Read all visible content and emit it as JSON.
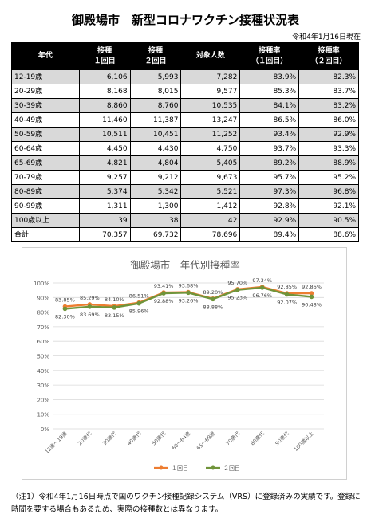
{
  "page": {
    "title": "御殿場市　新型コロナワクチン接種状況表",
    "date": "令和4年1月16日現在",
    "note": "（注1）令和4年1月16日時点で国のワクチン接種記録システム（VRS）に登録済みの実績です。登録に時間を要する場合もあるため、実際の接種数とは異なります。"
  },
  "table": {
    "headers": [
      [
        "年代",
        ""
      ],
      [
        "接種",
        "１回目"
      ],
      [
        "接種",
        "２回目"
      ],
      [
        "対象人数",
        ""
      ],
      [
        "接種率",
        "（１回目）"
      ],
      [
        "接種率",
        "（２回目）"
      ]
    ],
    "rows": [
      [
        "12-19歳",
        "6,106",
        "5,993",
        "7,282",
        "83.9%",
        "82.3%"
      ],
      [
        "20-29歳",
        "8,168",
        "8,015",
        "9,577",
        "85.3%",
        "83.7%"
      ],
      [
        "30-39歳",
        "8,860",
        "8,760",
        "10,535",
        "84.1%",
        "83.2%"
      ],
      [
        "40-49歳",
        "11,460",
        "11,387",
        "13,247",
        "86.5%",
        "86.0%"
      ],
      [
        "50-59歳",
        "10,511",
        "10,451",
        "11,252",
        "93.4%",
        "92.9%"
      ],
      [
        "60-64歳",
        "4,450",
        "4,430",
        "4,750",
        "93.7%",
        "93.3%"
      ],
      [
        "65-69歳",
        "4,821",
        "4,804",
        "5,405",
        "89.2%",
        "88.9%"
      ],
      [
        "70-79歳",
        "9,257",
        "9,212",
        "9,673",
        "95.7%",
        "95.2%"
      ],
      [
        "80-89歳",
        "5,374",
        "5,342",
        "5,521",
        "97.3%",
        "96.8%"
      ],
      [
        "90-99歳",
        "1,311",
        "1,300",
        "1,412",
        "92.8%",
        "92.1%"
      ],
      [
        "100歳以上",
        "39",
        "38",
        "42",
        "92.9%",
        "90.5%"
      ],
      [
        "合計",
        "70,357",
        "69,732",
        "78,696",
        "89.4%",
        "88.6%"
      ]
    ]
  },
  "chart_data": {
    "type": "line",
    "title": "御殿場市　年代別接種率",
    "categories": [
      "12歳～19歳",
      "20歳代",
      "30歳代",
      "40歳代",
      "50歳代",
      "60～64歳",
      "65～69歳",
      "70歳代",
      "80歳代",
      "90歳代",
      "100歳以上"
    ],
    "series": [
      {
        "name": "１回目",
        "color": "#ed7d31",
        "values": [
          83.85,
          85.29,
          84.1,
          86.51,
          93.41,
          93.68,
          89.2,
          95.7,
          97.34,
          92.85,
          92.86
        ],
        "labels": [
          "83.85%",
          "85.29%",
          "84.10%",
          "86.51%",
          "93.41%",
          "93.68%",
          "89.20%",
          "95.70%",
          "97.34%",
          "92.85%",
          "92.86%"
        ]
      },
      {
        "name": "２回目",
        "color": "#70943a",
        "values": [
          82.3,
          83.69,
          83.15,
          85.96,
          92.88,
          93.26,
          88.88,
          95.23,
          96.76,
          92.07,
          90.48
        ],
        "labels": [
          "82.30%",
          "83.69%",
          "83.15%",
          "85.96%",
          "92.88%",
          "93.26%",
          "88.88%",
          "95.23%",
          "96.76%",
          "92.07%",
          "90.48%"
        ]
      }
    ],
    "ylim": [
      0,
      100
    ],
    "ytick_labels": [
      "0%",
      "10%",
      "20%",
      "30%",
      "40%",
      "50%",
      "60%",
      "70%",
      "80%",
      "90%",
      "100%"
    ],
    "grid": true,
    "legend": "bottom"
  }
}
